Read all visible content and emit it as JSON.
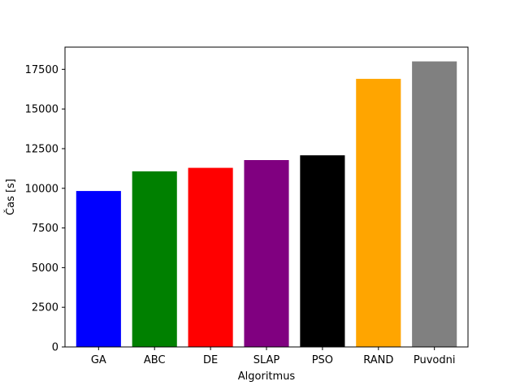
{
  "chart_data": {
    "type": "bar",
    "title": "",
    "xlabel": "Algoritmus",
    "ylabel": "Čas [s]",
    "categories": [
      "GA",
      "ABC",
      "DE",
      "SLAP",
      "PSO",
      "RAND",
      "Puvodni"
    ],
    "values": [
      9830,
      11070,
      11290,
      11780,
      12080,
      16900,
      18000
    ],
    "colors": [
      "#0000ff",
      "#008000",
      "#ff0000",
      "#800080",
      "#000000",
      "#ffa500",
      "#808080"
    ],
    "ylim": [
      0,
      18900
    ],
    "yticks": [
      0,
      2500,
      5000,
      7500,
      10000,
      12500,
      15000,
      17500
    ],
    "grid": false,
    "legend": "none"
  }
}
